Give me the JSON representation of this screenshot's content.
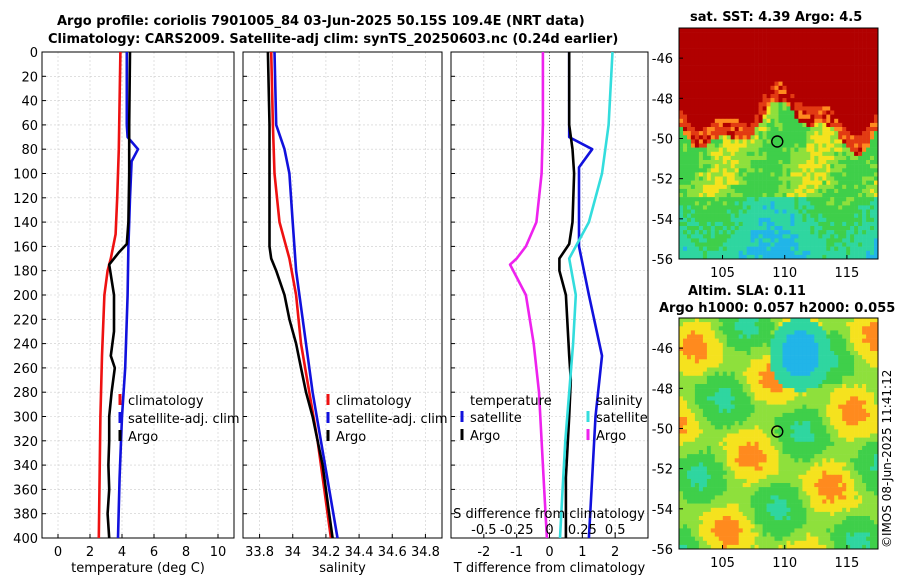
{
  "titles": {
    "line1": "Argo profile: coriolis 7901005_84 03-Jun-2025 50.15S 109.4E (NRT data)",
    "line2": "Climatology: CARS2009. Satellite-adj clim: synTS_20250603.nc (0.24d earlier)",
    "sst": "sat. SST: 4.39 Argo: 4.5",
    "sla1": "Altim. SLA: 0.11",
    "sla2": "Argo h1000: 0.057 h2000: 0.055"
  },
  "side_label": "©IMOS 08-Jun-2025 11:41:12",
  "colors": {
    "climatology": "#ee1111",
    "satellite": "#1111dd",
    "argo": "#000000",
    "sdiff": "#ee22ee",
    "ssat": "#33dddd"
  },
  "chart_data": [
    {
      "type": "line",
      "name": "temperature",
      "xlabel": "temperature (deg C)",
      "ylabel": "",
      "xlim": [
        -1,
        11
      ],
      "ylim": [
        400,
        0
      ],
      "xticks": [
        "0",
        "2",
        "4",
        "6",
        "8",
        "10"
      ],
      "yticks": [
        "0",
        "20",
        "40",
        "60",
        "80",
        "100",
        "120",
        "140",
        "160",
        "180",
        "200",
        "220",
        "240",
        "260",
        "280",
        "300",
        "320",
        "340",
        "360",
        "380",
        "400"
      ],
      "legend": [
        "climatology",
        "satellite-adj. clim",
        "Argo"
      ],
      "series": [
        {
          "name": "climatology",
          "depth": [
            0,
            40,
            80,
            120,
            150,
            170,
            180,
            200,
            250,
            300,
            350,
            400
          ],
          "values": [
            3.9,
            3.85,
            3.8,
            3.7,
            3.6,
            3.3,
            3.1,
            2.9,
            2.75,
            2.65,
            2.6,
            2.55
          ]
        },
        {
          "name": "satellite-adj. clim",
          "depth": [
            0,
            60,
            70,
            80,
            90,
            120,
            160,
            200,
            260,
            300,
            350,
            400
          ],
          "values": [
            4.3,
            4.3,
            4.35,
            5.0,
            4.6,
            4.5,
            4.4,
            4.35,
            4.2,
            4.0,
            3.85,
            3.75
          ]
        },
        {
          "name": "Argo",
          "depth": [
            0,
            60,
            80,
            100,
            140,
            158,
            165,
            175,
            200,
            230,
            250,
            260,
            270,
            280,
            300,
            320,
            340,
            360,
            380,
            400
          ],
          "values": [
            4.5,
            4.45,
            4.45,
            4.45,
            4.4,
            4.3,
            3.8,
            3.2,
            3.5,
            3.5,
            3.3,
            3.55,
            3.45,
            3.35,
            3.2,
            3.2,
            3.15,
            3.2,
            3.1,
            3.2
          ]
        }
      ]
    },
    {
      "type": "line",
      "name": "salinity",
      "xlabel": "salinity",
      "ylabel": "",
      "xlim": [
        33.7,
        34.9
      ],
      "ylim": [
        400,
        0
      ],
      "xticks": [
        "33.8",
        "34",
        "34.2",
        "34.4",
        "34.6",
        "34.8"
      ],
      "legend": [
        "climatology",
        "satellite-adj. clim",
        "Argo"
      ],
      "series": [
        {
          "name": "climatology",
          "depth": [
            0,
            60,
            100,
            140,
            170,
            200,
            240,
            280,
            320,
            360,
            400
          ],
          "values": [
            33.87,
            33.88,
            33.89,
            33.92,
            33.98,
            34.02,
            34.05,
            34.1,
            34.15,
            34.19,
            34.23
          ]
        },
        {
          "name": "satellite-adj. clim",
          "depth": [
            0,
            60,
            80,
            100,
            140,
            180,
            200,
            240,
            280,
            320,
            360,
            400
          ],
          "values": [
            33.89,
            33.9,
            33.95,
            33.98,
            34.0,
            34.02,
            34.04,
            34.08,
            34.12,
            34.17,
            34.22,
            34.27
          ]
        },
        {
          "name": "Argo",
          "depth": [
            0,
            60,
            100,
            140,
            160,
            170,
            180,
            200,
            220,
            240,
            260,
            280,
            300,
            320,
            340,
            360,
            380,
            400
          ],
          "values": [
            33.85,
            33.86,
            33.86,
            33.86,
            33.86,
            33.87,
            33.9,
            33.95,
            33.98,
            34.02,
            34.05,
            34.08,
            34.12,
            34.15,
            34.18,
            34.2,
            34.22,
            34.24
          ]
        }
      ]
    },
    {
      "type": "line",
      "name": "differences",
      "xlabel": "T difference from climatology",
      "xlabel_top": "S difference from climatology",
      "xlim": [
        -3,
        3
      ],
      "ylim": [
        400,
        0
      ],
      "xticks": [
        "-2",
        "-1",
        "0",
        "1",
        "2"
      ],
      "xticks_top": [
        "-0.5",
        "-0.25",
        "0",
        "0.25",
        "0.5"
      ],
      "legend_t_title": "temperature",
      "legend_s_title": "salinity",
      "legend": [
        "satellite",
        "Argo",
        "satellite",
        "Argo"
      ],
      "series": [
        {
          "name": "T satellite",
          "depth": [
            0,
            60,
            70,
            80,
            95,
            120,
            160,
            200,
            250,
            300,
            350,
            400
          ],
          "values": [
            0.6,
            0.6,
            0.6,
            1.3,
            0.9,
            0.9,
            0.9,
            1.2,
            1.6,
            1.4,
            1.3,
            1.2
          ]
        },
        {
          "name": "T Argo",
          "depth": [
            0,
            60,
            80,
            100,
            140,
            158,
            170,
            180,
            200,
            250,
            270,
            300,
            350,
            400
          ],
          "values": [
            0.6,
            0.6,
            0.7,
            0.75,
            0.7,
            0.6,
            0.3,
            0.3,
            0.5,
            0.6,
            0.65,
            0.6,
            0.5,
            0.5
          ]
        },
        {
          "name": "S satellite",
          "depth": [
            0,
            60,
            100,
            140,
            170,
            200,
            240,
            280,
            320,
            360,
            400
          ],
          "values": [
            0.48,
            0.45,
            0.4,
            0.3,
            0.15,
            0.2,
            0.18,
            0.15,
            0.12,
            0.1,
            0.08
          ]
        },
        {
          "name": "S Argo",
          "depth": [
            0,
            60,
            100,
            140,
            160,
            170,
            175,
            200,
            240,
            280,
            320,
            360,
            400
          ],
          "values": [
            -0.05,
            -0.05,
            -0.06,
            -0.1,
            -0.18,
            -0.25,
            -0.3,
            -0.18,
            -0.12,
            -0.08,
            -0.06,
            -0.04,
            -0.02
          ]
        }
      ]
    },
    {
      "type": "heatmap",
      "name": "sat-sst-map",
      "title": "sat. SST: 4.39 Argo: 4.5",
      "xlim": [
        101.5,
        117.5
      ],
      "ylim": [
        -56,
        -44.5
      ],
      "xticks": [
        "105",
        "110",
        "115"
      ],
      "yticks": [
        "-46",
        "-48",
        "-50",
        "-52",
        "-54",
        "-56"
      ],
      "marker": {
        "lon": 109.4,
        "lat": -50.15
      }
    },
    {
      "type": "heatmap",
      "name": "altim-sla-map",
      "title": "Altim. SLA: 0.11",
      "xlim": [
        101.5,
        117.5
      ],
      "ylim": [
        -56,
        -44.5
      ],
      "xticks": [
        "105",
        "110",
        "115"
      ],
      "yticks": [
        "-46",
        "-48",
        "-50",
        "-52",
        "-54",
        "-56"
      ],
      "marker": {
        "lon": 109.4,
        "lat": -50.15
      }
    }
  ]
}
